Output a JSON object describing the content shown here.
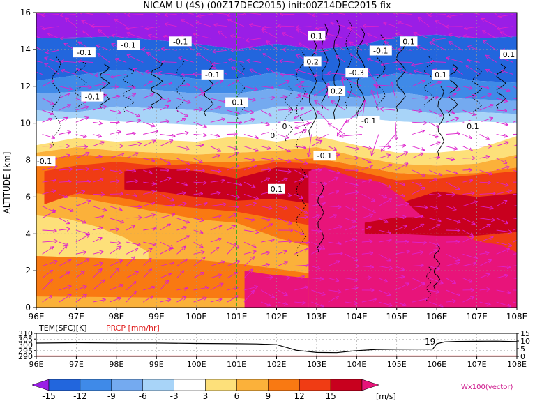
{
  "title": "NICAM U (4S) (00Z17DEC2015) init:00Z14DEC2015 fix",
  "chart_data": [
    {
      "type": "heatmap",
      "subtype": "longitude-height cross section with contours and wind vectors",
      "title": "NICAM U (4S) (00Z17DEC2015) init:00Z14DEC2015 fix",
      "ylabel": "ALTITUDE [km]",
      "xlabel": "",
      "x_ticks": [
        "96E",
        "97E",
        "98E",
        "99E",
        "100E",
        "101E",
        "102E",
        "103E",
        "104E",
        "105E",
        "106E",
        "107E",
        "108E"
      ],
      "x_range": [
        96,
        108
      ],
      "y_ticks": [
        "0",
        "2",
        "4",
        "6",
        "8",
        "10",
        "12",
        "14",
        "16"
      ],
      "y_range": [
        0,
        16
      ],
      "grid": true,
      "marker_line": {
        "lon": 101,
        "color": "#22aa22",
        "style": "dashed"
      },
      "fill_colors": [
        "#9a1ee6",
        "#2266dd",
        "#3f8ae8",
        "#74aaf0",
        "#a8d4f8",
        "#ffffff",
        "#fde07a",
        "#fbb13a",
        "#f97912",
        "#f03c14",
        "#c8001e",
        "#e8147a"
      ],
      "contour_levels_shown": [
        "-0.1",
        "0.1",
        "0.2",
        "-0.3",
        "0",
        "-0.1",
        "0.1"
      ],
      "contour_labels": [
        {
          "text": "-0.1",
          "lon": 96.2,
          "alt": 7.9
        },
        {
          "text": "-0.1",
          "lon": 97.2,
          "alt": 13.8
        },
        {
          "text": "-0.1",
          "lon": 97.4,
          "alt": 11.4
        },
        {
          "text": "-0.1",
          "lon": 98.3,
          "alt": 14.2
        },
        {
          "text": "-0.1",
          "lon": 99.6,
          "alt": 14.4
        },
        {
          "text": "-0.1",
          "lon": 100.4,
          "alt": 12.6
        },
        {
          "text": "-0.1",
          "lon": 101.0,
          "alt": 11.1
        },
        {
          "text": "0.1",
          "lon": 103.0,
          "alt": 14.7
        },
        {
          "text": "0.2",
          "lon": 102.9,
          "alt": 13.3
        },
        {
          "text": "0.2",
          "lon": 103.5,
          "alt": 11.7
        },
        {
          "text": "-0.3",
          "lon": 104.0,
          "alt": 12.7
        },
        {
          "text": "-0.1",
          "lon": 104.6,
          "alt": 13.9
        },
        {
          "text": "0.1",
          "lon": 105.3,
          "alt": 14.4
        },
        {
          "text": "0.1",
          "lon": 106.1,
          "alt": 12.6
        },
        {
          "text": "0.1",
          "lon": 107.8,
          "alt": 13.7
        },
        {
          "text": "-0.1",
          "lon": 104.3,
          "alt": 10.1
        },
        {
          "text": "0.1",
          "lon": 106.9,
          "alt": 9.8
        },
        {
          "text": "0",
          "lon": 101.9,
          "alt": 9.3
        },
        {
          "text": "0",
          "lon": 102.2,
          "alt": 9.8
        },
        {
          "text": "-0.1",
          "lon": 103.2,
          "alt": 8.2
        },
        {
          "text": "0.1",
          "lon": 102.0,
          "alt": 6.4
        }
      ],
      "regions": [
        {
          "value": -15,
          "desc": "strong easterlies near 14-16 km"
        },
        {
          "value": -12,
          "desc": "12-14 km band"
        },
        {
          "value": -6,
          "desc": "around 11-12 km"
        },
        {
          "value": 0,
          "desc": "weak wind near 9-10 km"
        },
        {
          "value": 12,
          "desc": "westerly max 5-8 km west of 104E"
        },
        {
          "value": 15,
          "desc": "strong westerlies 0-7 km east of 103E"
        }
      ],
      "vector_color": "#dd22cc",
      "vector_label": "Wx100(vector)"
    },
    {
      "type": "line",
      "title": "",
      "series": [
        {
          "name": "TEM(SFC)[K]",
          "color": "#000000",
          "x": [
            96,
            97,
            98,
            99,
            100,
            101,
            101.5,
            102,
            102.5,
            103,
            103.5,
            104,
            104.5,
            105,
            105.5,
            105.9,
            106.0,
            106.2,
            106.5,
            107,
            107.5,
            108
          ],
          "y": [
            301.5,
            301.8,
            301.6,
            301.6,
            301.2,
            301,
            300.8,
            300.2,
            295.3,
            293.4,
            293.2,
            295.0,
            296.0,
            296.2,
            296.3,
            296.3,
            301.0,
            302.6,
            303.0,
            303.1,
            303.2,
            302.8
          ]
        },
        {
          "name": "PRCP [mm/hr]",
          "color": "#ff0000",
          "x": [
            96,
            108
          ],
          "y": [
            0,
            0
          ]
        }
      ],
      "left_axis": {
        "ticks": [
          "290",
          "295",
          "300",
          "305",
          "310"
        ],
        "range": [
          290,
          310
        ]
      },
      "right_axis": {
        "ticks": [
          "0",
          "5",
          "10",
          "15"
        ],
        "range": [
          0,
          15
        ]
      },
      "x_ticks": [
        "96E",
        "97E",
        "98E",
        "99E",
        "100E",
        "101E",
        "102E",
        "103E",
        "104E",
        "105E",
        "106E",
        "107E",
        "108E"
      ],
      "annotation": "19"
    }
  ],
  "colorbar": {
    "ticks": [
      "-15",
      "-12",
      "-9",
      "-6",
      "-3",
      "3",
      "6",
      "9",
      "12",
      "15"
    ],
    "unit": "[m/s]",
    "colors": [
      "#9a1ee6",
      "#2266dd",
      "#3f8ae8",
      "#74aaf0",
      "#a8d4f8",
      "#ffffff",
      "#fde07a",
      "#fbb13a",
      "#f97912",
      "#f03c14",
      "#c8001e",
      "#e8147a"
    ]
  },
  "legend": {
    "tem_label": "TEM(SFC)[K]",
    "prcp_label": "PRCP [mm/hr]",
    "vector_label": "Wx100(vector)"
  }
}
